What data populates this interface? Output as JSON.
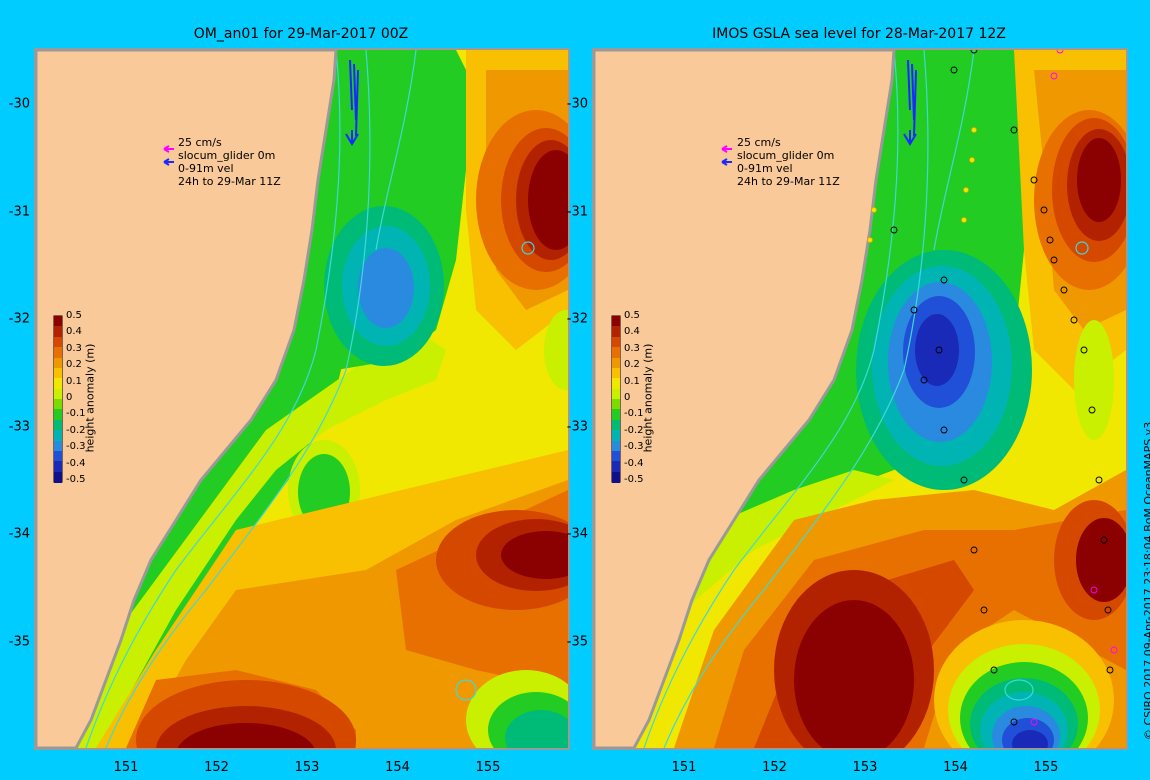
{
  "panels": [
    {
      "title": "OM_an01 for 29-Mar-2017 00Z",
      "legend_lines": [
        "25 cm/s",
        "slocum_glider 0m",
        "0-91m vel",
        "24h to 29-Mar 11Z"
      ]
    },
    {
      "title": "IMOS GSLA sea level  for 28-Mar-2017 12Z",
      "legend_lines": [
        "25 cm/s",
        "slocum_glider 0m",
        "0-91m vel",
        "24h to 29-Mar 11Z"
      ]
    }
  ],
  "axes": {
    "lat_labels": [
      "-30",
      "-31",
      "-32",
      "-33",
      "-34",
      "-35"
    ],
    "lat_values": [
      -30,
      -31,
      -32,
      -33,
      -34,
      -35
    ],
    "lon_labels": [
      "151",
      "152",
      "153",
      "154",
      "155"
    ],
    "lon_values": [
      151,
      152,
      153,
      154,
      155
    ]
  },
  "colorbar": {
    "label": "height anomaly (m)",
    "ticks": [
      "0.5",
      "0.4",
      "0.3",
      "0.2",
      "0.1",
      "0",
      "-0.1",
      "-0.2",
      "-0.3",
      "-0.4",
      "-0.5"
    ],
    "colors": [
      "#8b0000",
      "#b22200",
      "#d44800",
      "#e87000",
      "#f09800",
      "#f8c000",
      "#f0e800",
      "#c8f000",
      "#7cdc00",
      "#22cc22",
      "#00bb77",
      "#00b4b4",
      "#2a8ae0",
      "#2050d8",
      "#1a2ab8",
      "#10108a"
    ]
  },
  "colors": {
    "background": "#00ccff",
    "land": "#f9c99a",
    "coast": "#999999",
    "velocity_arrow": "#1a2aff",
    "glider_arrow": "#ff00ff",
    "contour": "#40d8d8"
  },
  "copyright": "© CSIRO 2017   09-Apr-2017 23:18:04 BoM OceanMAPS v3"
}
